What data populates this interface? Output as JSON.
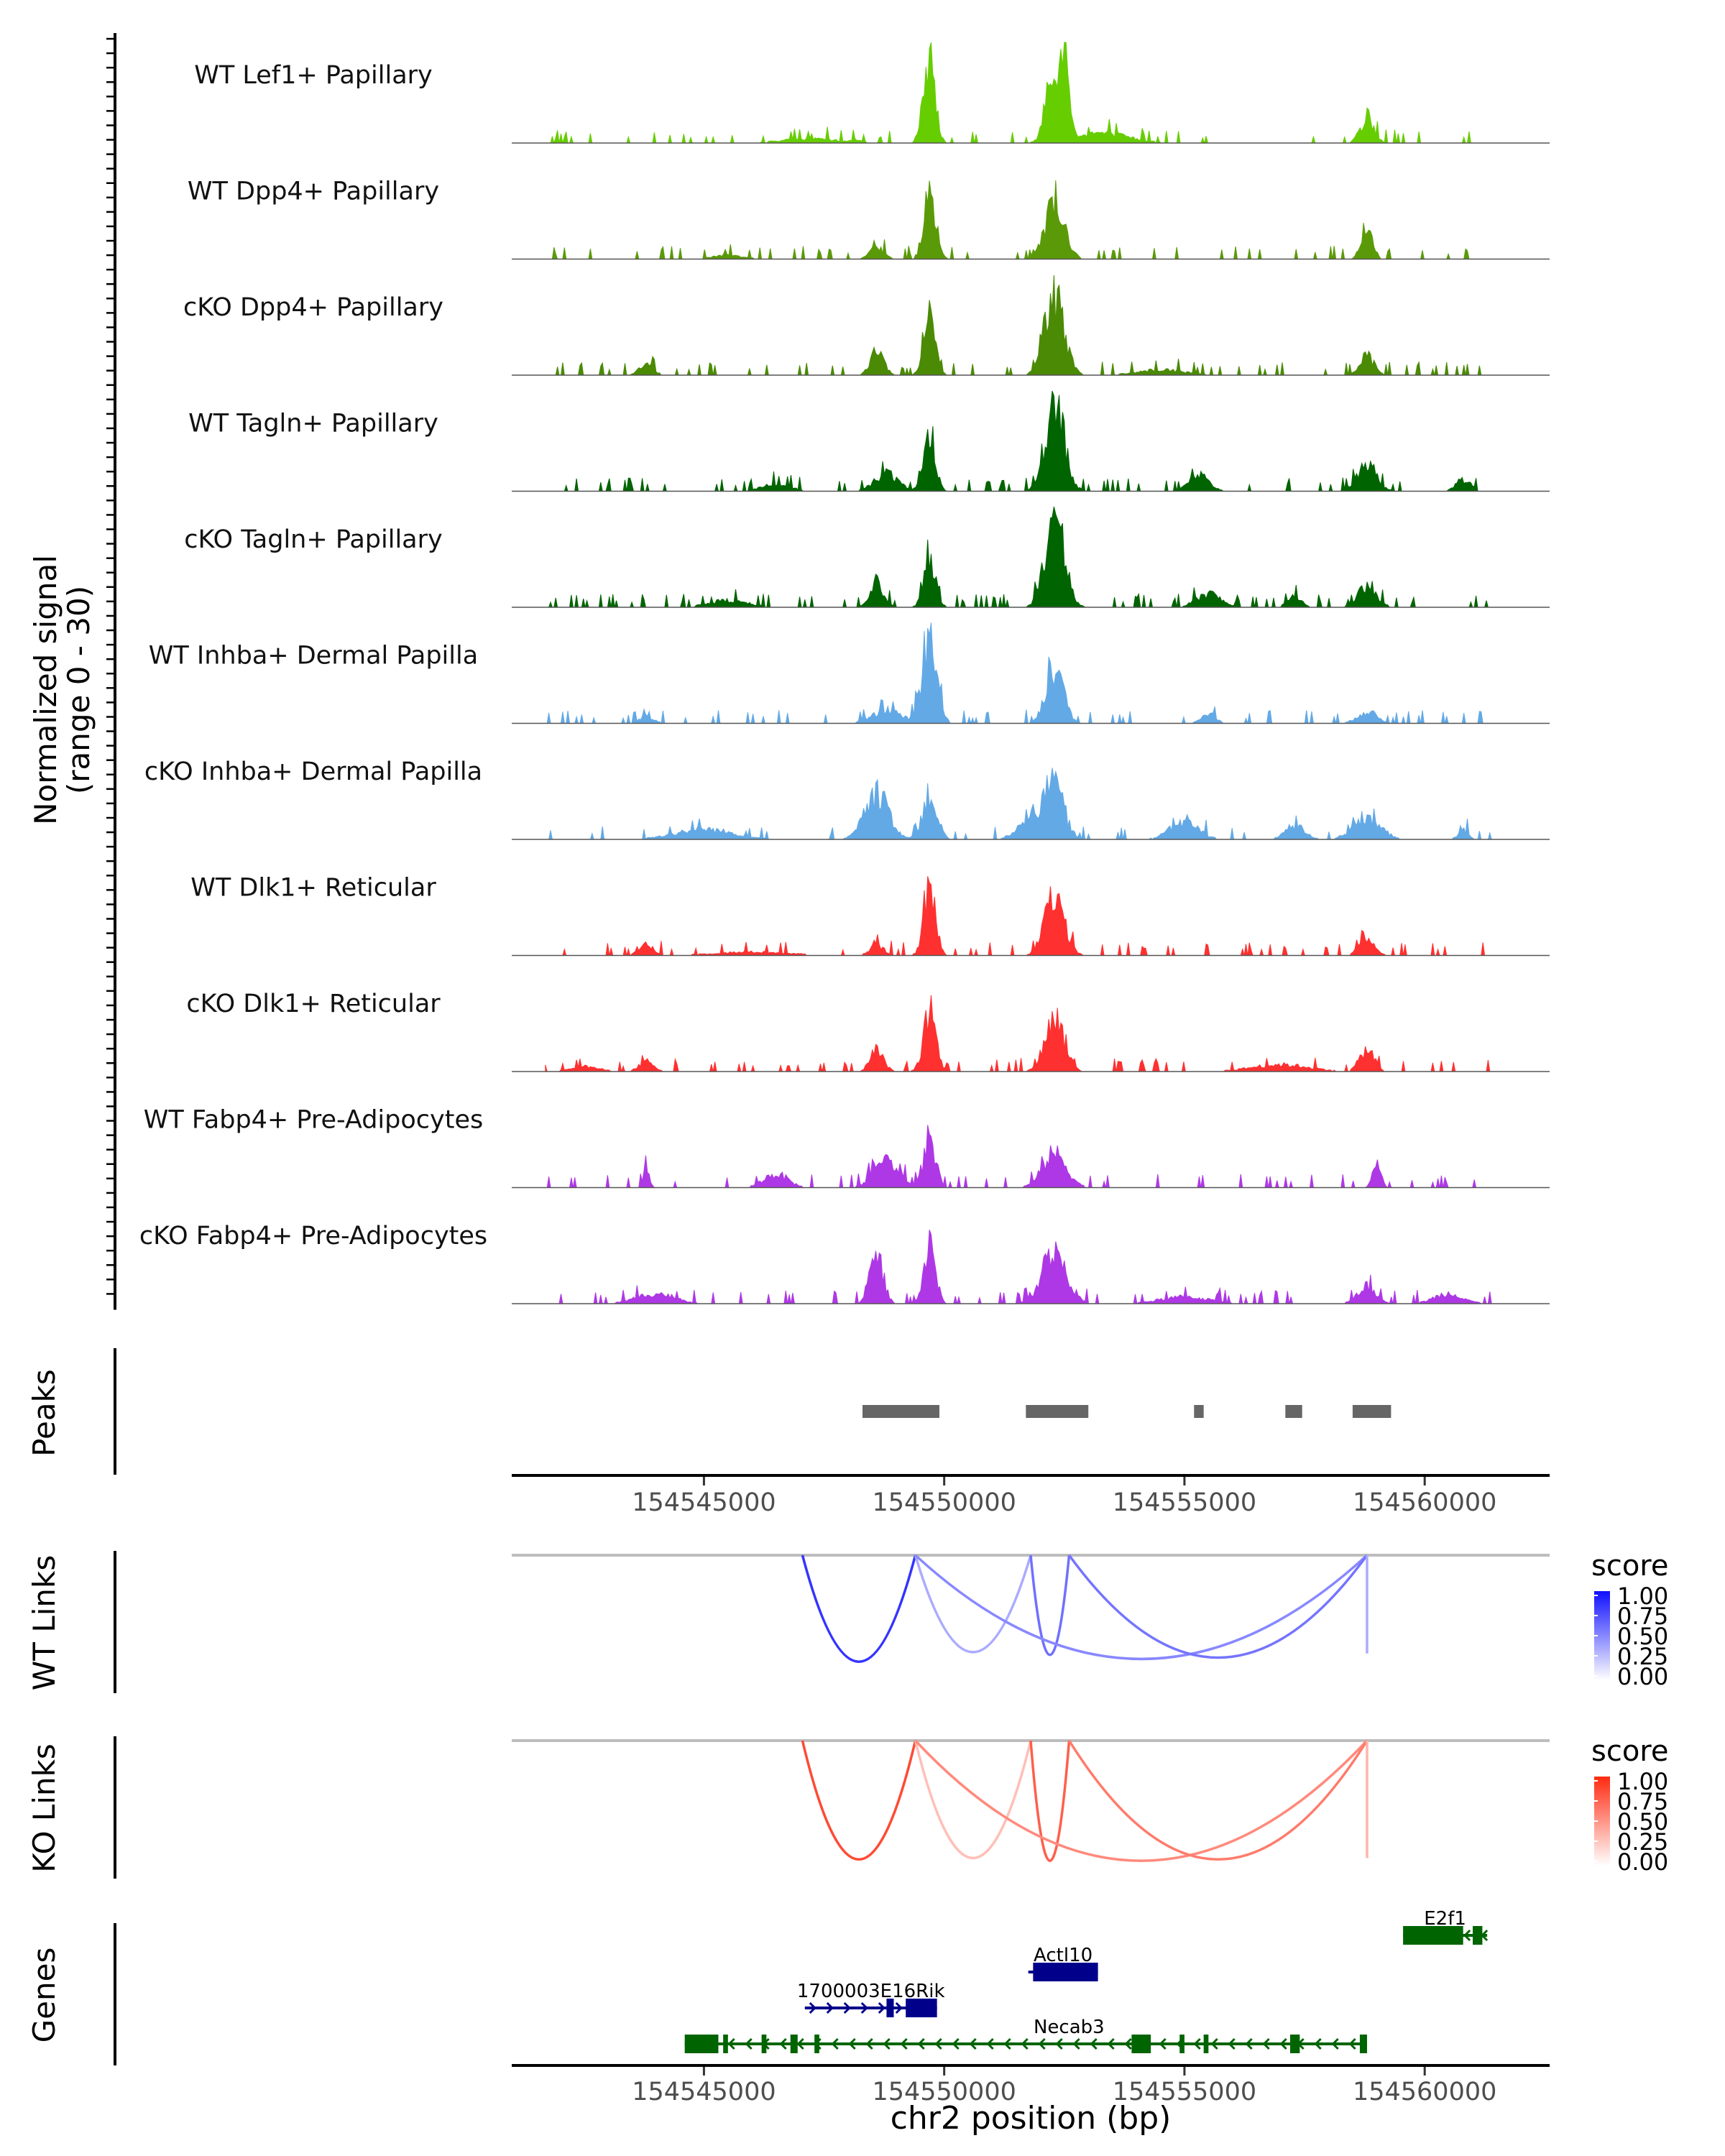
{
  "chart_data": {
    "type": "genome-browser",
    "region": {
      "chrom": "chr2",
      "start": 154541000,
      "end": 154562600
    },
    "xlabel": "chr2 position (bp)",
    "x_ticks": [
      154545000,
      154550000,
      154555000,
      154560000
    ],
    "x_tick_labels": [
      "154545000",
      "154550000",
      "154555000",
      "154560000"
    ],
    "coverage": {
      "ylabel": "Normalized signal",
      "ylabel_range": "(range 0 - 30)",
      "ylim": [
        0,
        30
      ],
      "tracks": [
        {
          "name": "WT Lef1+ Papillary",
          "color": "#66CD00",
          "scale": 1.0,
          "peaks": [
            [
              154548200,
              0.7,
              120
            ],
            [
              154549500,
              2.0,
              70
            ],
            [
              154549700,
              28.0,
              110
            ],
            [
              154552200,
              18.0,
              120
            ],
            [
              154552500,
              26.0,
              90
            ],
            [
              154558800,
              6.5,
              150
            ],
            [
              154553200,
              3.0,
              600
            ],
            [
              154547200,
              1.2,
              600
            ]
          ]
        },
        {
          "name": "WT Dpp4+ Papillary",
          "color": "#5A9A08",
          "scale": 1.0,
          "peaks": [
            [
              154548600,
              3.5,
              140
            ],
            [
              154549700,
              21.0,
              120
            ],
            [
              154552300,
              17.0,
              200
            ],
            [
              154558800,
              8.0,
              120
            ],
            [
              154545500,
              1.2,
              300
            ]
          ]
        },
        {
          "name": "cKO Dpp4+ Papillary",
          "color": "#4A8A04",
          "scale": 1.0,
          "peaks": [
            [
              154543800,
              3.0,
              150
            ],
            [
              154548600,
              7.0,
              140
            ],
            [
              154549700,
              17.0,
              120
            ],
            [
              154552300,
              23.0,
              200
            ],
            [
              154558800,
              5.5,
              150
            ],
            [
              154554500,
              1.5,
              500
            ]
          ]
        },
        {
          "name": "WT Tagln+ Papillary",
          "color": "#006400",
          "scale": 1.0,
          "peaks": [
            [
              154548800,
              5.0,
              250
            ],
            [
              154549700,
              17.0,
              120
            ],
            [
              154552300,
              26.0,
              200
            ],
            [
              154555300,
              5.0,
              200
            ],
            [
              154558800,
              8.0,
              200
            ],
            [
              154560800,
              3.5,
              150
            ],
            [
              154546500,
              2.0,
              300
            ]
          ]
        },
        {
          "name": "cKO Tagln+ Papillary",
          "color": "#006400",
          "scale": 1.0,
          "peaks": [
            [
              154548600,
              7.0,
              140
            ],
            [
              154549700,
              15.0,
              120
            ],
            [
              154552300,
              26.0,
              200
            ],
            [
              154555500,
              4.0,
              250
            ],
            [
              154557300,
              3.0,
              150
            ],
            [
              154558800,
              6.0,
              200
            ],
            [
              154545500,
              2.0,
              400
            ]
          ]
        },
        {
          "name": "WT Inhba+ Dermal Papilla",
          "color": "#63A9E6",
          "scale": 1.0,
          "peaks": [
            [
              154548800,
              4.0,
              300
            ],
            [
              154549700,
              27.0,
              150
            ],
            [
              154552300,
              16.0,
              180
            ],
            [
              154555500,
              3.0,
              150
            ],
            [
              154558800,
              3.5,
              200
            ],
            [
              154543800,
              2.0,
              150
            ]
          ]
        },
        {
          "name": "cKO Inhba+ Dermal Papilla",
          "color": "#63A9E6",
          "scale": 1.0,
          "peaks": [
            [
              154548600,
              13.0,
              250
            ],
            [
              154549700,
              13.0,
              150
            ],
            [
              154551800,
              7.0,
              250
            ],
            [
              154552300,
              15.0,
              200
            ],
            [
              154555000,
              5.0,
              300
            ],
            [
              154557300,
              4.0,
              200
            ],
            [
              154558800,
              5.5,
              300
            ],
            [
              154545000,
              3.0,
              600
            ],
            [
              154560800,
              3.0,
              100
            ]
          ]
        },
        {
          "name": "WT Dlk1+ Reticular",
          "color": "#FF3030",
          "scale": 1.0,
          "peaks": [
            [
              154548600,
              3.0,
              150
            ],
            [
              154549700,
              20.0,
              120
            ],
            [
              154552300,
              18.0,
              200
            ],
            [
              154558800,
              6.0,
              150
            ],
            [
              154543800,
              3.0,
              150
            ],
            [
              154546000,
              1.0,
              800
            ]
          ]
        },
        {
          "name": "cKO Dlk1+ Reticular",
          "color": "#FF3030",
          "scale": 1.0,
          "peaks": [
            [
              154548600,
              6.0,
              140
            ],
            [
              154549700,
              17.0,
              130
            ],
            [
              154552300,
              16.0,
              200
            ],
            [
              154558800,
              6.5,
              150
            ],
            [
              154543800,
              3.0,
              150
            ],
            [
              154557000,
              2.0,
              600
            ],
            [
              154542500,
              1.5,
              300
            ]
          ]
        },
        {
          "name": "WT Fabp4+ Pre-Adipocytes",
          "color": "#AE38E5",
          "scale": 1.0,
          "peaks": [
            [
              154543800,
              6.0,
              60
            ],
            [
              154548800,
              9.0,
              250
            ],
            [
              154549700,
              15.0,
              120
            ],
            [
              154552300,
              10.0,
              250
            ],
            [
              154559000,
              8.0,
              80
            ],
            [
              154546500,
              4.0,
              250
            ]
          ]
        },
        {
          "name": "cKO Fabp4+ Pre-Adipocytes",
          "color": "#AE38E5",
          "scale": 1.0,
          "peaks": [
            [
              154548600,
              13.0,
              140
            ],
            [
              154549700,
              17.0,
              120
            ],
            [
              154552300,
              16.0,
              250
            ],
            [
              154558800,
              5.0,
              200
            ],
            [
              154544000,
              3.0,
              400
            ],
            [
              154560500,
              3.0,
              300
            ],
            [
              154555000,
              2.0,
              500
            ]
          ]
        }
      ]
    },
    "peaks_track": {
      "label": "Peaks",
      "color": "#666666",
      "regions": [
        [
          154548300,
          154549900
        ],
        [
          154551700,
          154553000
        ],
        [
          154555200,
          154555400
        ],
        [
          154557100,
          154557450
        ],
        [
          154558500,
          154559300
        ]
      ]
    },
    "wt_links": {
      "label": "WT Links",
      "legend_title": "score",
      "legend_ticks": [
        "1.00",
        "0.75",
        "0.50",
        "0.25",
        "0.00"
      ],
      "color_high": "#1010FF",
      "color_low": "#FFFFFF",
      "links": [
        {
          "start": 154547050,
          "end": 154549400,
          "score": 0.85,
          "depth": 0.78
        },
        {
          "start": 154549400,
          "end": 154551800,
          "score": 0.35,
          "depth": 0.71
        },
        {
          "start": 154551800,
          "end": 154552600,
          "score": 0.6,
          "depth": 0.73
        },
        {
          "start": 154549400,
          "end": 154558800,
          "score": 0.5,
          "depth": 0.76
        },
        {
          "start": 154552600,
          "end": 154558800,
          "score": 0.58,
          "depth": 0.75
        },
        {
          "start": 154558800,
          "end": 154558800,
          "score": 0.35,
          "depth": 0.72
        }
      ]
    },
    "ko_links": {
      "label": "KO Links",
      "legend_title": "score",
      "legend_ticks": [
        "1.00",
        "0.75",
        "0.50",
        "0.25",
        "0.00"
      ],
      "color_high": "#FF2A10",
      "color_low": "#FFFFFF",
      "links": [
        {
          "start": 154547050,
          "end": 154549400,
          "score": 0.85,
          "depth": 0.87
        },
        {
          "start": 154549400,
          "end": 154551800,
          "score": 0.3,
          "depth": 0.86
        },
        {
          "start": 154551800,
          "end": 154552600,
          "score": 0.75,
          "depth": 0.88
        },
        {
          "start": 154549400,
          "end": 154558800,
          "score": 0.55,
          "depth": 0.88
        },
        {
          "start": 154552600,
          "end": 154558800,
          "score": 0.62,
          "depth": 0.87
        },
        {
          "start": 154558800,
          "end": 154558800,
          "score": 0.35,
          "depth": 0.86
        }
      ]
    },
    "genes_track": {
      "label": "Genes",
      "genes": [
        {
          "name": "E2f1",
          "start": 154559550,
          "end": 154561300,
          "strand": "-",
          "color": "#006400",
          "row": 0,
          "exons": [
            [
              154559550,
              154560800
            ],
            [
              154561000,
              154561200
            ]
          ]
        },
        {
          "name": "Actl10",
          "start": 154551750,
          "end": 154553200,
          "strand": "-",
          "color": "#00008B",
          "row": 1,
          "exons": [
            [
              154551850,
              154553200
            ]
          ]
        },
        {
          "name": "1700003E16Rik",
          "start": 154547100,
          "end": 154549850,
          "strand": "+",
          "color": "#00008B",
          "row": 2,
          "exons": [
            [
              154548800,
              154548950
            ],
            [
              154549200,
              154549850
            ]
          ]
        },
        {
          "name": "Necab3",
          "start": 154544600,
          "end": 154558800,
          "strand": "-",
          "color": "#006400",
          "row": 3,
          "exons": [
            [
              154544600,
              154545300
            ],
            [
              154545400,
              154545500
            ],
            [
              154546200,
              154546300
            ],
            [
              154546800,
              154546950
            ],
            [
              154547300,
              154547400
            ],
            [
              154553900,
              154554300
            ],
            [
              154554900,
              154555000
            ],
            [
              154555400,
              154555500
            ],
            [
              154557200,
              154557400
            ],
            [
              154558650,
              154558800
            ]
          ]
        }
      ]
    }
  }
}
